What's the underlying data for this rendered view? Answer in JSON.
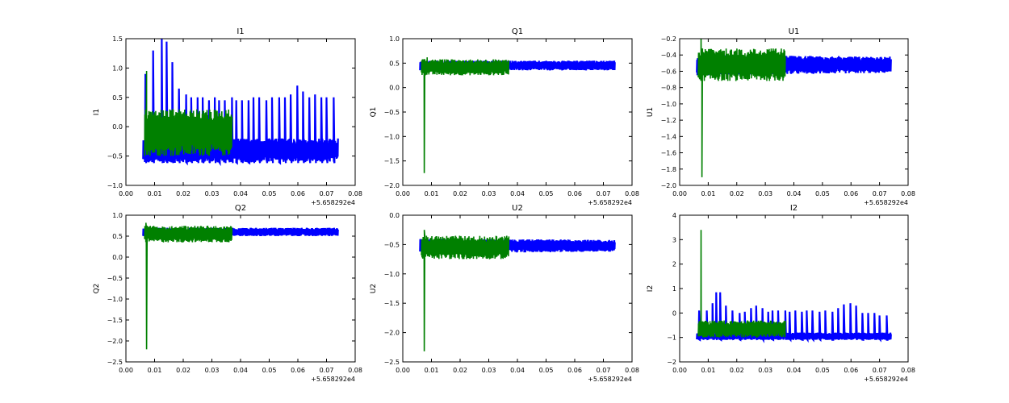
{
  "chart_data": [
    {
      "type": "line",
      "title": "I1",
      "ylabel": "I1",
      "xlabel": "",
      "x_offset_label": "+5.658292e4",
      "xlim": [
        0.0,
        0.08
      ],
      "ylim": [
        -1.0,
        1.5
      ],
      "xticks": [
        "0.00",
        "0.01",
        "0.02",
        "0.03",
        "0.04",
        "0.05",
        "0.06",
        "0.07",
        "0.08"
      ],
      "yticks": [
        "−1.0",
        "−0.5",
        "0.0",
        "0.5",
        "1.0",
        "1.5"
      ],
      "grid": false,
      "series": [
        {
          "color": "#0000ff",
          "x_range": [
            0.006,
            0.074
          ],
          "band": [
            -0.62,
            -0.2
          ],
          "band_end": [
            -0.6,
            -0.2
          ],
          "spike_top": 0.5,
          "spikes": [
            [
              0.0068,
              0.9
            ],
            [
              0.0095,
              1.3
            ],
            [
              0.0125,
              1.5
            ],
            [
              0.0142,
              1.45
            ],
            [
              0.0162,
              1.1
            ],
            [
              0.0185,
              0.65
            ],
            [
              0.021,
              0.55
            ],
            [
              0.0228,
              0.5
            ],
            [
              0.025,
              0.5
            ],
            [
              0.0268,
              0.5
            ],
            [
              0.029,
              0.45
            ],
            [
              0.031,
              0.5
            ],
            [
              0.0325,
              0.45
            ],
            [
              0.0345,
              0.45
            ],
            [
              0.037,
              0.5
            ],
            [
              0.0385,
              0.45
            ],
            [
              0.0405,
              0.45
            ],
            [
              0.0428,
              0.45
            ],
            [
              0.0445,
              0.5
            ],
            [
              0.0465,
              0.5
            ],
            [
              0.049,
              0.45
            ],
            [
              0.051,
              0.5
            ],
            [
              0.0535,
              0.5
            ],
            [
              0.0555,
              0.5
            ],
            [
              0.0575,
              0.55
            ],
            [
              0.0598,
              0.7
            ],
            [
              0.0618,
              0.6
            ],
            [
              0.064,
              0.5
            ],
            [
              0.066,
              0.55
            ],
            [
              0.0682,
              0.5
            ],
            [
              0.07,
              0.5
            ],
            [
              0.0725,
              0.5
            ]
          ]
        },
        {
          "color": "#008000",
          "x_range": [
            0.0065,
            0.037
          ],
          "band": [
            -0.5,
            0.3
          ],
          "peak": [
            0.0072,
            0.95
          ],
          "dip": null
        }
      ]
    },
    {
      "type": "line",
      "title": "Q1",
      "ylabel": "Q1",
      "xlabel": "",
      "x_offset_label": "+5.658292e4",
      "xlim": [
        0.0,
        0.08
      ],
      "ylim": [
        -2.0,
        1.0
      ],
      "xticks": [
        "0.00",
        "0.01",
        "0.02",
        "0.03",
        "0.04",
        "0.05",
        "0.06",
        "0.07",
        "0.08"
      ],
      "yticks": [
        "−2.0",
        "−1.5",
        "−1.0",
        "−0.5",
        "0.0",
        "0.5",
        "1.0"
      ],
      "grid": false,
      "series": [
        {
          "color": "#0000ff",
          "x_range": [
            0.006,
            0.074
          ],
          "band": [
            0.35,
            0.55
          ],
          "band_end": [
            0.35,
            0.55
          ],
          "spike_top": null,
          "spikes": []
        },
        {
          "color": "#008000",
          "x_range": [
            0.0065,
            0.037
          ],
          "band": [
            0.25,
            0.58
          ],
          "peak": [
            0.0085,
            0.62
          ],
          "dip": [
            0.0075,
            -1.75
          ]
        }
      ]
    },
    {
      "type": "line",
      "title": "U1",
      "ylabel": "U1",
      "xlabel": "",
      "x_offset_label": "+5.658292e4",
      "xlim": [
        0.0,
        0.08
      ],
      "ylim": [
        -2.0,
        -0.2
      ],
      "xticks": [
        "0.00",
        "0.01",
        "0.02",
        "0.03",
        "0.04",
        "0.05",
        "0.06",
        "0.07",
        "0.08"
      ],
      "yticks": [
        "−2.0",
        "−1.8",
        "−1.6",
        "−1.4",
        "−1.2",
        "−1.0",
        "−0.8",
        "−0.6",
        "−0.4",
        "−0.2"
      ],
      "grid": false,
      "series": [
        {
          "color": "#0000ff",
          "x_range": [
            0.006,
            0.074
          ],
          "band": [
            -0.65,
            -0.4
          ],
          "band_end": [
            -0.62,
            -0.42
          ],
          "spike_top": null,
          "spikes": []
        },
        {
          "color": "#008000",
          "x_range": [
            0.0065,
            0.037
          ],
          "band": [
            -0.72,
            -0.32
          ],
          "peak": [
            0.0075,
            -0.2
          ],
          "dip": [
            0.0078,
            -1.9
          ]
        }
      ]
    },
    {
      "type": "line",
      "title": "Q2",
      "ylabel": "Q2",
      "xlabel": "",
      "x_offset_label": "+5.658292e4",
      "xlim": [
        0.0,
        0.08
      ],
      "ylim": [
        -2.5,
        1.0
      ],
      "xticks": [
        "0.00",
        "0.01",
        "0.02",
        "0.03",
        "0.04",
        "0.05",
        "0.06",
        "0.07",
        "0.08"
      ],
      "yticks": [
        "−2.5",
        "−2.0",
        "−1.5",
        "−1.0",
        "−0.5",
        "0.0",
        "0.5",
        "1.0"
      ],
      "grid": false,
      "series": [
        {
          "color": "#0000ff",
          "x_range": [
            0.006,
            0.074
          ],
          "band": [
            0.5,
            0.7
          ],
          "band_end": [
            0.5,
            0.7
          ],
          "spike_top": null,
          "spikes": []
        },
        {
          "color": "#008000",
          "x_range": [
            0.0065,
            0.037
          ],
          "band": [
            0.35,
            0.75
          ],
          "peak": [
            0.007,
            0.82
          ],
          "dip": [
            0.0072,
            -2.2
          ]
        }
      ]
    },
    {
      "type": "line",
      "title": "U2",
      "ylabel": "U2",
      "xlabel": "",
      "x_offset_label": "+5.658292e4",
      "xlim": [
        0.0,
        0.08
      ],
      "ylim": [
        -2.5,
        0.0
      ],
      "xticks": [
        "0.00",
        "0.01",
        "0.02",
        "0.03",
        "0.04",
        "0.05",
        "0.06",
        "0.07",
        "0.08"
      ],
      "yticks": [
        "−2.5",
        "−2.0",
        "−1.5",
        "−1.0",
        "−0.5",
        "0.0"
      ],
      "grid": false,
      "series": [
        {
          "color": "#0000ff",
          "x_range": [
            0.006,
            0.074
          ],
          "band": [
            -0.65,
            -0.4
          ],
          "band_end": [
            -0.62,
            -0.42
          ],
          "spike_top": null,
          "spikes": []
        },
        {
          "color": "#008000",
          "x_range": [
            0.0065,
            0.037
          ],
          "band": [
            -0.75,
            -0.35
          ],
          "peak": [
            0.0075,
            -0.25
          ],
          "dip": [
            0.0075,
            -2.32
          ]
        }
      ]
    },
    {
      "type": "line",
      "title": "I2",
      "ylabel": "I2",
      "xlabel": "",
      "x_offset_label": "+5.658292e4",
      "xlim": [
        0.0,
        0.08
      ],
      "ylim": [
        -2.0,
        4.0
      ],
      "xticks": [
        "0.00",
        "0.01",
        "0.02",
        "0.03",
        "0.04",
        "0.05",
        "0.06",
        "0.07",
        "0.08"
      ],
      "yticks": [
        "−2",
        "−1",
        "0",
        "1",
        "2",
        "3",
        "4"
      ],
      "grid": false,
      "series": [
        {
          "color": "#0000ff",
          "x_range": [
            0.006,
            0.074
          ],
          "band": [
            -1.1,
            -0.8
          ],
          "band_end": [
            -1.1,
            -0.8
          ],
          "spike_top": -0.3,
          "spikes": [
            [
              0.0068,
              0.1
            ],
            [
              0.0095,
              0.1
            ],
            [
              0.0115,
              0.4
            ],
            [
              0.0128,
              0.85
            ],
            [
              0.0142,
              0.85
            ],
            [
              0.0162,
              0.3
            ],
            [
              0.0185,
              0.1
            ],
            [
              0.021,
              0.0
            ],
            [
              0.0228,
              0.05
            ],
            [
              0.025,
              0.2
            ],
            [
              0.0268,
              0.3
            ],
            [
              0.029,
              0.2
            ],
            [
              0.031,
              0.05
            ],
            [
              0.0325,
              0.1
            ],
            [
              0.0345,
              0.1
            ],
            [
              0.037,
              0.1
            ],
            [
              0.0385,
              0.05
            ],
            [
              0.0405,
              0.1
            ],
            [
              0.0428,
              0.05
            ],
            [
              0.0445,
              0.1
            ],
            [
              0.0465,
              0.1
            ],
            [
              0.049,
              0.05
            ],
            [
              0.051,
              0.1
            ],
            [
              0.0535,
              0.05
            ],
            [
              0.0555,
              0.2
            ],
            [
              0.0575,
              0.35
            ],
            [
              0.0598,
              0.4
            ],
            [
              0.0618,
              0.3
            ],
            [
              0.064,
              0.0
            ],
            [
              0.066,
              0.0
            ],
            [
              0.0682,
              0.0
            ],
            [
              0.07,
              -0.1
            ],
            [
              0.0725,
              -0.1
            ]
          ]
        },
        {
          "color": "#008000",
          "x_range": [
            0.0065,
            0.037
          ],
          "band": [
            -1.0,
            -0.3
          ],
          "peak": [
            0.0075,
            3.4
          ],
          "dip": null
        }
      ]
    }
  ]
}
